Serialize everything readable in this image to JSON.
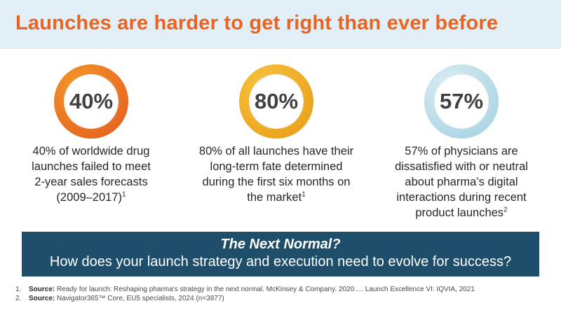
{
  "slide": {
    "title": "Launches are harder to get right than ever before",
    "colors": {
      "title": "#ea6320",
      "title_bar_bg": "#e3eff7",
      "banner_bg": "#1f4e6b"
    }
  },
  "stats": [
    {
      "value": "40%",
      "percent": 40,
      "ring_color": "#e4571f",
      "ring_color_light": "#f49a2a",
      "lines": [
        "40% of worldwide drug",
        "launches failed to meet",
        "2-year sales forecasts",
        "(2009–2017)"
      ],
      "footnote_ref": "1"
    },
    {
      "value": "80%",
      "percent": 80,
      "ring_color": "#e79a12",
      "ring_color_light": "#f8c340",
      "lines": [
        "80% of all launches have their",
        "long-term fate determined",
        "during the first six months on",
        "the market"
      ],
      "footnote_ref": "1"
    },
    {
      "value": "57%",
      "percent": 57,
      "ring_color": "#9fcfe0",
      "ring_color_light": "#dcedf4",
      "lines": [
        "57% of physicians are",
        "dissatisfied with or neutral",
        "about pharma’s digital",
        "interactions during recent",
        "product launches"
      ],
      "footnote_ref": "2"
    }
  ],
  "banner": {
    "heading": "The Next Normal?",
    "subtext": "How does your launch strategy and execution need to evolve for success?"
  },
  "footnotes": [
    {
      "number": "1.",
      "label": "Source:",
      "text": " Ready for launch: Reshaping pharma's strategy in the next normal. McKinsey & Company. 2020…. Launch Excellence VI: IQVIA, 2021"
    },
    {
      "number": "2.",
      "label": "Source:",
      "text": " Navigator365™ Core, EU5 specialists, 2024 (n=3877)"
    }
  ]
}
